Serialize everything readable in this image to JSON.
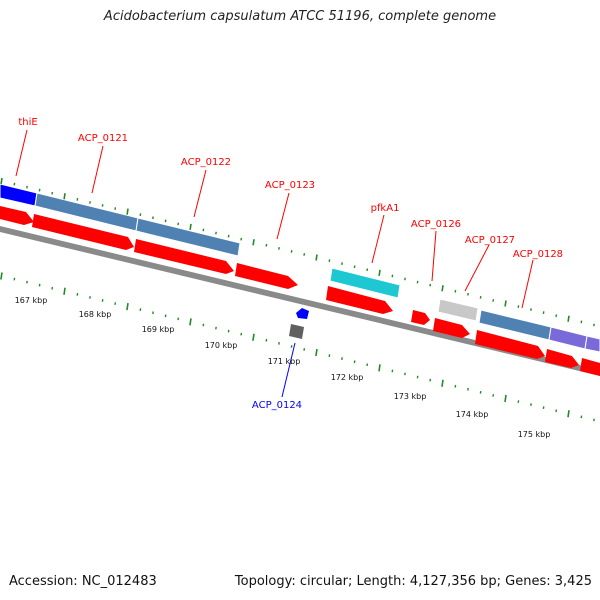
{
  "title": "Acidobacterium capsulatum ATCC 51196, complete genome",
  "footer": {
    "accession": "Accession: NC_012483",
    "topology": "Topology: circular; Length: 4,127,356 bp; Genes: 3,425"
  },
  "colors": {
    "cds_forward": "#ff0000",
    "cds_reverse": "#0000ff",
    "gene_blue": "#4f81b3",
    "gene_cyan": "#1ec8d2",
    "gene_purple": "#7a69d8",
    "gene_grey": "#c8c8c8",
    "tick_green": "#228b22",
    "backbone": "#8a8a8a"
  },
  "gene_labels": [
    {
      "name": "thiE",
      "strand": "forward"
    },
    {
      "name": "ACP_0121",
      "strand": "forward"
    },
    {
      "name": "ACP_0122",
      "strand": "forward"
    },
    {
      "name": "ACP_0123",
      "strand": "forward"
    },
    {
      "name": "pfkA1",
      "strand": "forward"
    },
    {
      "name": "ACP_0126",
      "strand": "forward"
    },
    {
      "name": "ACP_0127",
      "strand": "forward"
    },
    {
      "name": "ACP_0128",
      "strand": "forward"
    },
    {
      "name": "ACP_0124",
      "strand": "reverse"
    }
  ],
  "scale": {
    "unit": "kbp",
    "ticks": [
      "167 kbp",
      "168 kbp",
      "169 kbp",
      "170 kbp",
      "171 kbp",
      "172 kbp",
      "173 kbp",
      "174 kbp",
      "175 kbp"
    ]
  }
}
